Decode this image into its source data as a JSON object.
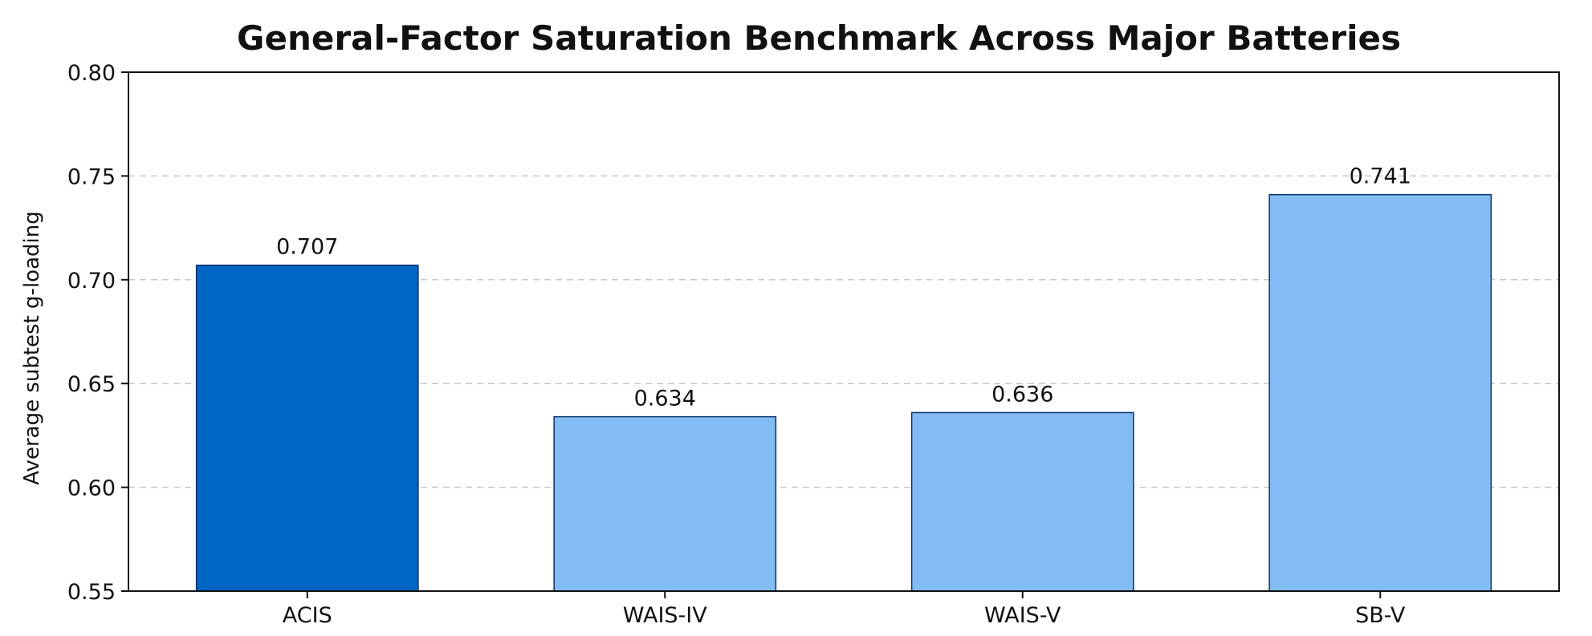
{
  "chart_data": {
    "type": "bar",
    "title": "General-Factor Saturation Benchmark Across Major Batteries",
    "xlabel": "",
    "ylabel": "Average subtest g-loading",
    "categories": [
      "ACIS",
      "WAIS-IV",
      "WAIS-V",
      "SB-V"
    ],
    "values": [
      0.707,
      0.634,
      0.636,
      0.741
    ],
    "data_labels": [
      "0.707",
      "0.634",
      "0.636",
      "0.741"
    ],
    "ylim": [
      0.55,
      0.8
    ],
    "yticks": [
      "0.55",
      "0.60",
      "0.65",
      "0.70",
      "0.75",
      "0.80"
    ],
    "grid": true,
    "colors": {
      "highlight": "#0066c4",
      "default": "#82bcf2",
      "edge": "#0d2f6b",
      "grid": "#c8c8c8"
    },
    "highlight_index": 0
  }
}
